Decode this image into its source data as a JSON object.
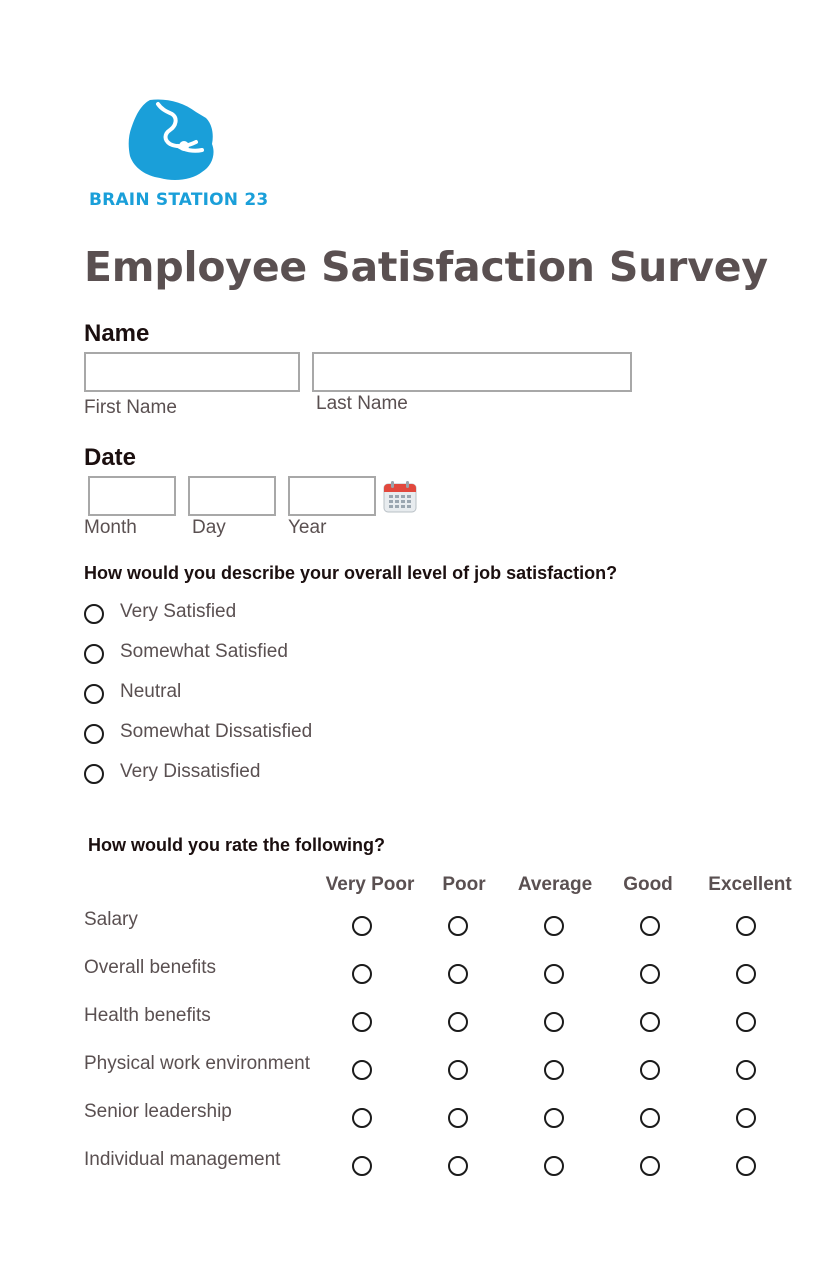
{
  "brand": {
    "name": "BRAIN STATION 23",
    "color": "#1a9fd9",
    "icon": "brain-station-logo-icon"
  },
  "title": "Employee Satisfaction Survey",
  "name_section": {
    "label": "Name",
    "first_label": "First Name",
    "last_label": "Last Name",
    "first_value": "",
    "last_value": ""
  },
  "date_section": {
    "label": "Date",
    "month_label": "Month",
    "day_label": "Day",
    "year_label": "Year",
    "calendar_icon": "calendar-icon"
  },
  "satisfaction": {
    "question": "How would you describe your overall level of job satisfaction?",
    "options": [
      "Very Satisfied",
      "Somewhat Satisfied",
      "Neutral",
      "Somewhat Dissatisfied",
      "Very Dissatisfied"
    ]
  },
  "rating": {
    "question": "How would you rate the following?",
    "columns": [
      "Very Poor",
      "Poor",
      "Average",
      "Good",
      "Excellent"
    ],
    "rows": [
      "Salary",
      "Overall benefits",
      "Health benefits",
      "Physical work environment",
      "Senior leadership",
      "Individual management"
    ]
  }
}
